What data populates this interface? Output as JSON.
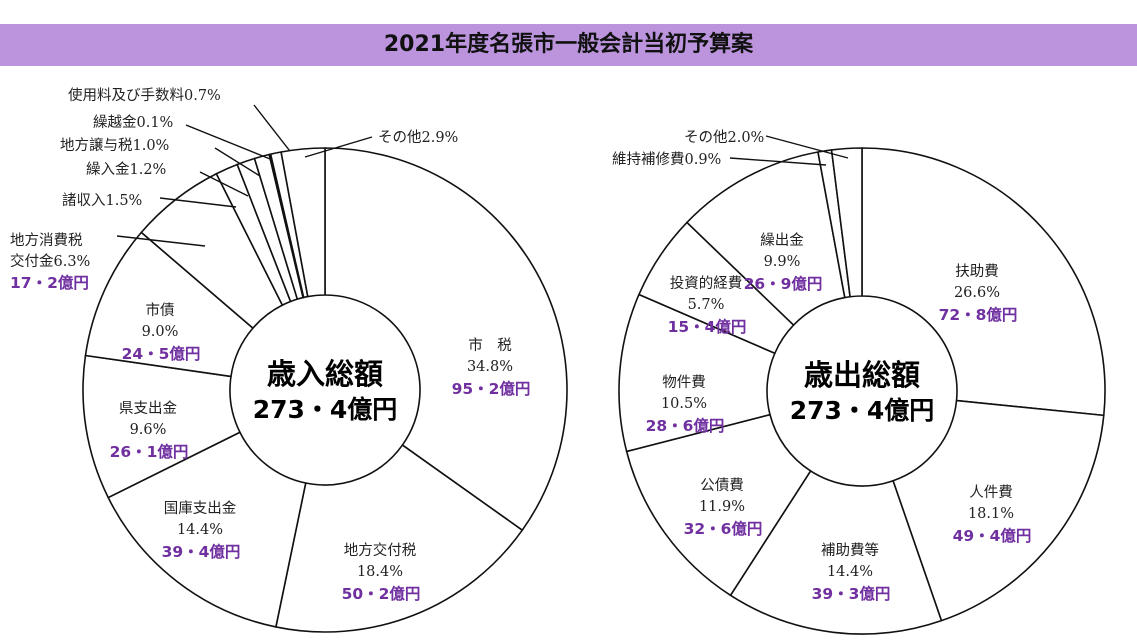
{
  "title": "2021年度名張市一般会計当初予算案",
  "colors": {
    "title_bar": "#bb94dd",
    "amount_text": "#7030a0",
    "line": "#111111"
  },
  "chart_data": [
    {
      "type": "pie",
      "title": "2021年度名張市一般会計当初予算案",
      "center_label": "歳入総額",
      "center_value": "273・4億円",
      "slices": [
        {
          "label": "市　税",
          "pct_text": "34.8%",
          "value": 34.8,
          "amount": "95・2億円"
        },
        {
          "label": "地方交付税",
          "pct_text": "18.4%",
          "value": 18.4,
          "amount": "50・2億円"
        },
        {
          "label": "国庫支出金",
          "pct_text": "14.4%",
          "value": 14.4,
          "amount": "39・4億円"
        },
        {
          "label": "県支出金",
          "pct_text": "9.6%",
          "value": 9.6,
          "amount": "26・1億円"
        },
        {
          "label": "市債",
          "pct_text": "9.0%",
          "value": 9.0,
          "amount": "24・5億円"
        },
        {
          "label": "地方消費税",
          "label2": "交付金6.3%",
          "value": 6.3,
          "amount": "17・2億円"
        },
        {
          "label": "諸収入1.5%",
          "value": 1.5
        },
        {
          "label": "繰入金1.2%",
          "value": 1.2
        },
        {
          "label": "地方譲与税1.0%",
          "value": 1.0
        },
        {
          "label": "繰越金0.1%",
          "value": 0.1
        },
        {
          "label": "使用料及び手数料0.7%",
          "value": 0.7
        },
        {
          "label": "その他2.9%",
          "value": 2.9
        }
      ]
    },
    {
      "type": "pie",
      "center_label": "歳出総額",
      "center_value": "273・4億円",
      "slices": [
        {
          "label": "扶助費",
          "pct_text": "26.6%",
          "value": 26.6,
          "amount": "72・8億円"
        },
        {
          "label": "人件費",
          "pct_text": "18.1%",
          "value": 18.1,
          "amount": "49・4億円"
        },
        {
          "label": "補助費等",
          "pct_text": "14.4%",
          "value": 14.4,
          "amount": "39・3億円"
        },
        {
          "label": "公債費",
          "pct_text": "11.9%",
          "value": 11.9,
          "amount": "32・6億円"
        },
        {
          "label": "物件費",
          "pct_text": "10.5%",
          "value": 10.5,
          "amount": "28・6億円"
        },
        {
          "label": "投資的経費",
          "pct_text": "5.7%",
          "value": 5.7,
          "amount": "15・4億円"
        },
        {
          "label": "繰出金",
          "pct_text": "9.9%",
          "value": 9.9,
          "amount": "26・9億円"
        },
        {
          "label": "維持補修費0.9%",
          "value": 0.9
        },
        {
          "label": "その他2.0%",
          "value": 2.0
        }
      ]
    }
  ]
}
